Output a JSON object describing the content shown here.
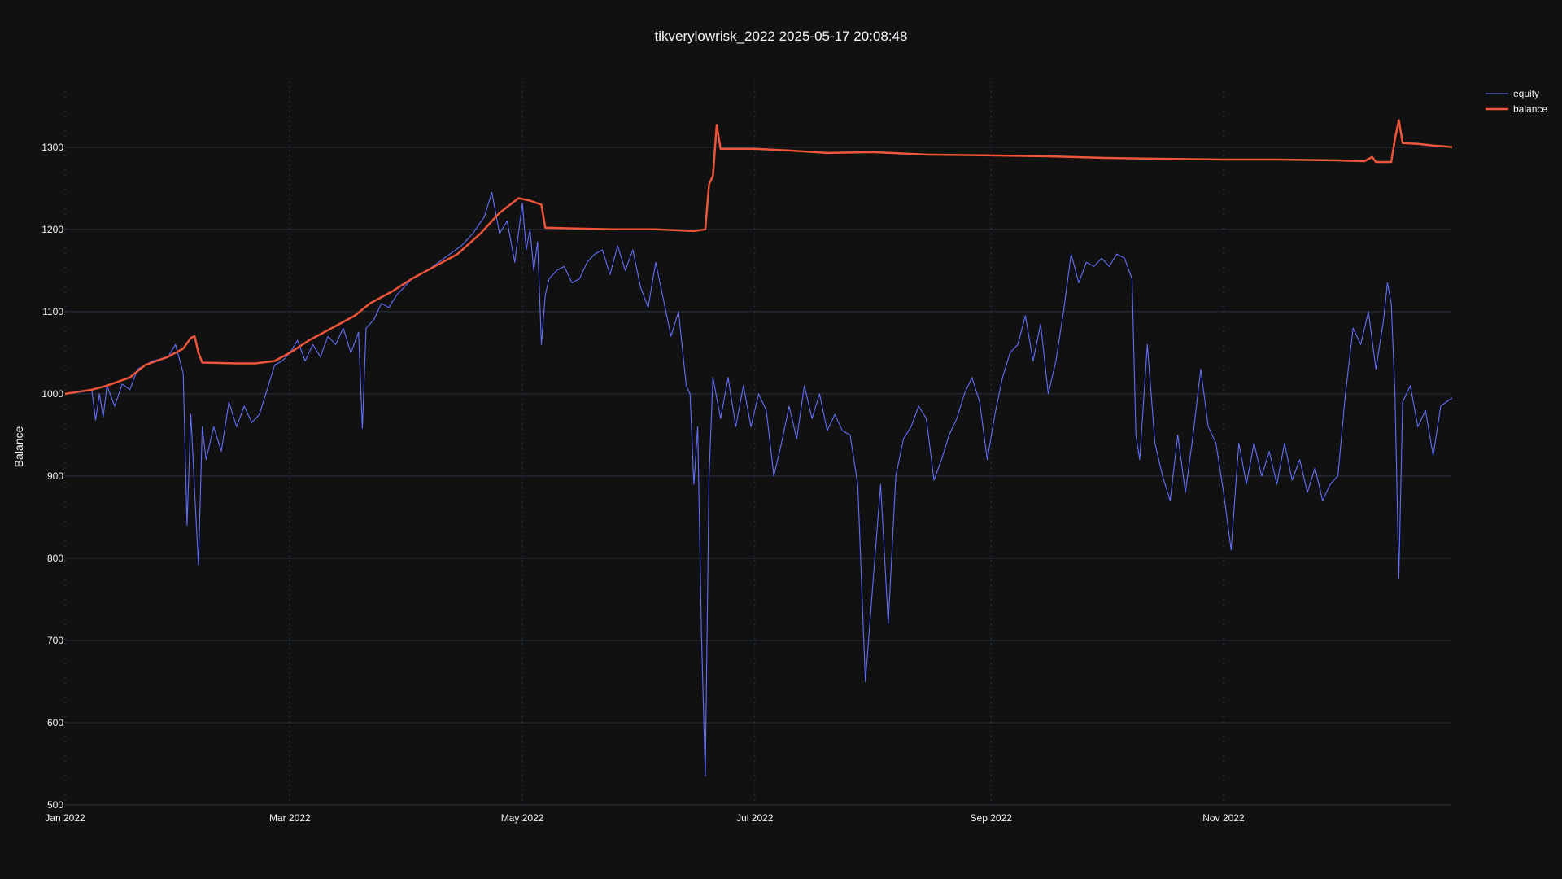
{
  "chart_data": {
    "type": "line",
    "title": "tikverylowrisk_2022 2025-05-17 20:08:48",
    "xlabel": "",
    "ylabel": "Balance",
    "xlim": [
      "2022-01-01",
      "2022-12-31"
    ],
    "ylim": [
      500,
      1380
    ],
    "x_ticks": [
      {
        "date": "2022-01-01",
        "label": "Jan 2022"
      },
      {
        "date": "2022-03-01",
        "label": "Mar 2022"
      },
      {
        "date": "2022-05-01",
        "label": "May 2022"
      },
      {
        "date": "2022-07-01",
        "label": "Jul 2022"
      },
      {
        "date": "2022-09-01",
        "label": "Sep 2022"
      },
      {
        "date": "2022-11-01",
        "label": "Nov 2022"
      }
    ],
    "y_ticks": [
      500,
      600,
      700,
      800,
      900,
      1000,
      1100,
      1200,
      1300
    ],
    "grid": true,
    "legend_position": "top-right",
    "colors": {
      "background": "#111111",
      "grid": "#283442",
      "equity": "#636efa",
      "balance": "#ef553b"
    },
    "series": [
      {
        "name": "equity",
        "color": "#636efa",
        "points": [
          [
            "2022-01-01",
            1000
          ],
          [
            "2022-01-06",
            1003
          ],
          [
            "2022-01-08",
            1005
          ],
          [
            "2022-01-09",
            968
          ],
          [
            "2022-01-10",
            1000
          ],
          [
            "2022-01-11",
            972
          ],
          [
            "2022-01-12",
            1010
          ],
          [
            "2022-01-14",
            985
          ],
          [
            "2022-01-16",
            1012
          ],
          [
            "2022-01-18",
            1005
          ],
          [
            "2022-01-20",
            1030
          ],
          [
            "2022-01-24",
            1040
          ],
          [
            "2022-01-28",
            1045
          ],
          [
            "2022-01-30",
            1060
          ],
          [
            "2022-02-01",
            1025
          ],
          [
            "2022-02-02",
            840
          ],
          [
            "2022-02-03",
            975
          ],
          [
            "2022-02-04",
            880
          ],
          [
            "2022-02-05",
            792
          ],
          [
            "2022-02-06",
            960
          ],
          [
            "2022-02-07",
            920
          ],
          [
            "2022-02-09",
            960
          ],
          [
            "2022-02-11",
            930
          ],
          [
            "2022-02-13",
            990
          ],
          [
            "2022-02-15",
            960
          ],
          [
            "2022-02-17",
            985
          ],
          [
            "2022-02-19",
            965
          ],
          [
            "2022-02-21",
            975
          ],
          [
            "2022-02-23",
            1005
          ],
          [
            "2022-02-25",
            1035
          ],
          [
            "2022-02-27",
            1040
          ],
          [
            "2022-03-01",
            1050
          ],
          [
            "2022-03-03",
            1065
          ],
          [
            "2022-03-05",
            1040
          ],
          [
            "2022-03-07",
            1060
          ],
          [
            "2022-03-09",
            1045
          ],
          [
            "2022-03-11",
            1070
          ],
          [
            "2022-03-13",
            1060
          ],
          [
            "2022-03-15",
            1080
          ],
          [
            "2022-03-17",
            1050
          ],
          [
            "2022-03-19",
            1075
          ],
          [
            "2022-03-20",
            958
          ],
          [
            "2022-03-21",
            1080
          ],
          [
            "2022-03-23",
            1090
          ],
          [
            "2022-03-25",
            1110
          ],
          [
            "2022-03-27",
            1105
          ],
          [
            "2022-03-29",
            1120
          ],
          [
            "2022-03-31",
            1130
          ],
          [
            "2022-04-02",
            1140
          ],
          [
            "2022-04-04",
            1145
          ],
          [
            "2022-04-06",
            1150
          ],
          [
            "2022-04-09",
            1160
          ],
          [
            "2022-04-12",
            1170
          ],
          [
            "2022-04-15",
            1180
          ],
          [
            "2022-04-18",
            1195
          ],
          [
            "2022-04-21",
            1215
          ],
          [
            "2022-04-23",
            1245
          ],
          [
            "2022-04-25",
            1195
          ],
          [
            "2022-04-27",
            1210
          ],
          [
            "2022-04-29",
            1160
          ],
          [
            "2022-05-01",
            1232
          ],
          [
            "2022-05-02",
            1175
          ],
          [
            "2022-05-03",
            1200
          ],
          [
            "2022-05-04",
            1150
          ],
          [
            "2022-05-05",
            1185
          ],
          [
            "2022-05-06",
            1060
          ],
          [
            "2022-05-07",
            1120
          ],
          [
            "2022-05-08",
            1140
          ],
          [
            "2022-05-10",
            1150
          ],
          [
            "2022-05-12",
            1155
          ],
          [
            "2022-05-14",
            1135
          ],
          [
            "2022-05-16",
            1140
          ],
          [
            "2022-05-18",
            1160
          ],
          [
            "2022-05-20",
            1170
          ],
          [
            "2022-05-22",
            1175
          ],
          [
            "2022-05-24",
            1145
          ],
          [
            "2022-05-26",
            1180
          ],
          [
            "2022-05-28",
            1150
          ],
          [
            "2022-05-30",
            1175
          ],
          [
            "2022-06-01",
            1130
          ],
          [
            "2022-06-03",
            1105
          ],
          [
            "2022-06-05",
            1160
          ],
          [
            "2022-06-07",
            1115
          ],
          [
            "2022-06-09",
            1070
          ],
          [
            "2022-06-11",
            1100
          ],
          [
            "2022-06-13",
            1010
          ],
          [
            "2022-06-14",
            1000
          ],
          [
            "2022-06-15",
            890
          ],
          [
            "2022-06-16",
            960
          ],
          [
            "2022-06-17",
            710
          ],
          [
            "2022-06-18",
            535
          ],
          [
            "2022-06-19",
            900
          ],
          [
            "2022-06-20",
            1020
          ],
          [
            "2022-06-22",
            970
          ],
          [
            "2022-06-24",
            1020
          ],
          [
            "2022-06-26",
            960
          ],
          [
            "2022-06-28",
            1010
          ],
          [
            "2022-06-30",
            960
          ],
          [
            "2022-07-02",
            1000
          ],
          [
            "2022-07-04",
            980
          ],
          [
            "2022-07-06",
            900
          ],
          [
            "2022-07-08",
            940
          ],
          [
            "2022-07-10",
            985
          ],
          [
            "2022-07-12",
            945
          ],
          [
            "2022-07-14",
            1010
          ],
          [
            "2022-07-16",
            970
          ],
          [
            "2022-07-18",
            1000
          ],
          [
            "2022-07-20",
            955
          ],
          [
            "2022-07-22",
            975
          ],
          [
            "2022-07-24",
            955
          ],
          [
            "2022-07-26",
            950
          ],
          [
            "2022-07-28",
            890
          ],
          [
            "2022-07-30",
            650
          ],
          [
            "2022-08-01",
            770
          ],
          [
            "2022-08-03",
            890
          ],
          [
            "2022-08-05",
            720
          ],
          [
            "2022-08-07",
            900
          ],
          [
            "2022-08-09",
            945
          ],
          [
            "2022-08-11",
            960
          ],
          [
            "2022-08-13",
            985
          ],
          [
            "2022-08-15",
            970
          ],
          [
            "2022-08-17",
            895
          ],
          [
            "2022-08-19",
            920
          ],
          [
            "2022-08-21",
            950
          ],
          [
            "2022-08-23",
            970
          ],
          [
            "2022-08-25",
            1000
          ],
          [
            "2022-08-27",
            1020
          ],
          [
            "2022-08-29",
            990
          ],
          [
            "2022-08-31",
            920
          ],
          [
            "2022-09-02",
            975
          ],
          [
            "2022-09-04",
            1020
          ],
          [
            "2022-09-06",
            1050
          ],
          [
            "2022-09-08",
            1060
          ],
          [
            "2022-09-10",
            1095
          ],
          [
            "2022-09-12",
            1040
          ],
          [
            "2022-09-14",
            1085
          ],
          [
            "2022-09-16",
            1000
          ],
          [
            "2022-09-18",
            1040
          ],
          [
            "2022-09-20",
            1100
          ],
          [
            "2022-09-22",
            1170
          ],
          [
            "2022-09-24",
            1135
          ],
          [
            "2022-09-26",
            1160
          ],
          [
            "2022-09-28",
            1155
          ],
          [
            "2022-09-30",
            1165
          ],
          [
            "2022-10-02",
            1155
          ],
          [
            "2022-10-04",
            1170
          ],
          [
            "2022-10-06",
            1165
          ],
          [
            "2022-10-08",
            1140
          ],
          [
            "2022-10-09",
            950
          ],
          [
            "2022-10-10",
            920
          ],
          [
            "2022-10-12",
            1060
          ],
          [
            "2022-10-14",
            940
          ],
          [
            "2022-10-16",
            900
          ],
          [
            "2022-10-18",
            870
          ],
          [
            "2022-10-20",
            950
          ],
          [
            "2022-10-22",
            880
          ],
          [
            "2022-10-24",
            950
          ],
          [
            "2022-10-26",
            1030
          ],
          [
            "2022-10-28",
            960
          ],
          [
            "2022-10-30",
            940
          ],
          [
            "2022-11-01",
            880
          ],
          [
            "2022-11-03",
            810
          ],
          [
            "2022-11-05",
            940
          ],
          [
            "2022-11-07",
            890
          ],
          [
            "2022-11-09",
            940
          ],
          [
            "2022-11-11",
            900
          ],
          [
            "2022-11-13",
            930
          ],
          [
            "2022-11-15",
            890
          ],
          [
            "2022-11-17",
            940
          ],
          [
            "2022-11-19",
            895
          ],
          [
            "2022-11-21",
            920
          ],
          [
            "2022-11-23",
            880
          ],
          [
            "2022-11-25",
            910
          ],
          [
            "2022-11-27",
            870
          ],
          [
            "2022-11-29",
            890
          ],
          [
            "2022-12-01",
            900
          ],
          [
            "2022-12-03",
            1000
          ],
          [
            "2022-12-05",
            1080
          ],
          [
            "2022-12-07",
            1060
          ],
          [
            "2022-12-09",
            1100
          ],
          [
            "2022-12-11",
            1030
          ],
          [
            "2022-12-13",
            1090
          ],
          [
            "2022-12-14",
            1135
          ],
          [
            "2022-12-15",
            1110
          ],
          [
            "2022-12-16",
            1000
          ],
          [
            "2022-12-17",
            775
          ],
          [
            "2022-12-18",
            990
          ],
          [
            "2022-12-20",
            1010
          ],
          [
            "2022-12-22",
            960
          ],
          [
            "2022-12-24",
            980
          ],
          [
            "2022-12-26",
            925
          ],
          [
            "2022-12-28",
            985
          ],
          [
            "2022-12-31",
            995
          ]
        ]
      },
      {
        "name": "balance",
        "color": "#ef553b",
        "points": [
          [
            "2022-01-01",
            1000
          ],
          [
            "2022-01-08",
            1005
          ],
          [
            "2022-01-12",
            1010
          ],
          [
            "2022-01-18",
            1020
          ],
          [
            "2022-01-22",
            1035
          ],
          [
            "2022-01-28",
            1045
          ],
          [
            "2022-02-01",
            1055
          ],
          [
            "2022-02-03",
            1068
          ],
          [
            "2022-02-04",
            1070
          ],
          [
            "2022-02-05",
            1050
          ],
          [
            "2022-02-06",
            1038
          ],
          [
            "2022-02-15",
            1037
          ],
          [
            "2022-02-20",
            1037
          ],
          [
            "2022-02-25",
            1040
          ],
          [
            "2022-03-01",
            1050
          ],
          [
            "2022-03-06",
            1065
          ],
          [
            "2022-03-12",
            1080
          ],
          [
            "2022-03-18",
            1095
          ],
          [
            "2022-03-22",
            1110
          ],
          [
            "2022-03-28",
            1125
          ],
          [
            "2022-04-02",
            1140
          ],
          [
            "2022-04-08",
            1155
          ],
          [
            "2022-04-14",
            1170
          ],
          [
            "2022-04-20",
            1195
          ],
          [
            "2022-04-25",
            1220
          ],
          [
            "2022-04-30",
            1238
          ],
          [
            "2022-05-03",
            1235
          ],
          [
            "2022-05-06",
            1230
          ],
          [
            "2022-05-07",
            1202
          ],
          [
            "2022-05-15",
            1201
          ],
          [
            "2022-05-25",
            1200
          ],
          [
            "2022-06-05",
            1200
          ],
          [
            "2022-06-15",
            1198
          ],
          [
            "2022-06-18",
            1200
          ],
          [
            "2022-06-19",
            1255
          ],
          [
            "2022-06-20",
            1265
          ],
          [
            "2022-06-21",
            1327
          ],
          [
            "2022-06-22",
            1298
          ],
          [
            "2022-07-01",
            1298
          ],
          [
            "2022-07-10",
            1296
          ],
          [
            "2022-07-20",
            1293
          ],
          [
            "2022-08-01",
            1294
          ],
          [
            "2022-08-15",
            1291
          ],
          [
            "2022-09-01",
            1290
          ],
          [
            "2022-09-15",
            1289
          ],
          [
            "2022-10-01",
            1287
          ],
          [
            "2022-10-15",
            1286
          ],
          [
            "2022-11-01",
            1285
          ],
          [
            "2022-11-15",
            1285
          ],
          [
            "2022-12-01",
            1284
          ],
          [
            "2022-12-08",
            1283
          ],
          [
            "2022-12-10",
            1288
          ],
          [
            "2022-12-11",
            1282
          ],
          [
            "2022-12-15",
            1282
          ],
          [
            "2022-12-16",
            1310
          ],
          [
            "2022-12-17",
            1333
          ],
          [
            "2022-12-18",
            1305
          ],
          [
            "2022-12-22",
            1304
          ],
          [
            "2022-12-26",
            1302
          ],
          [
            "2022-12-29",
            1301
          ],
          [
            "2022-12-31",
            1300
          ]
        ]
      }
    ]
  }
}
